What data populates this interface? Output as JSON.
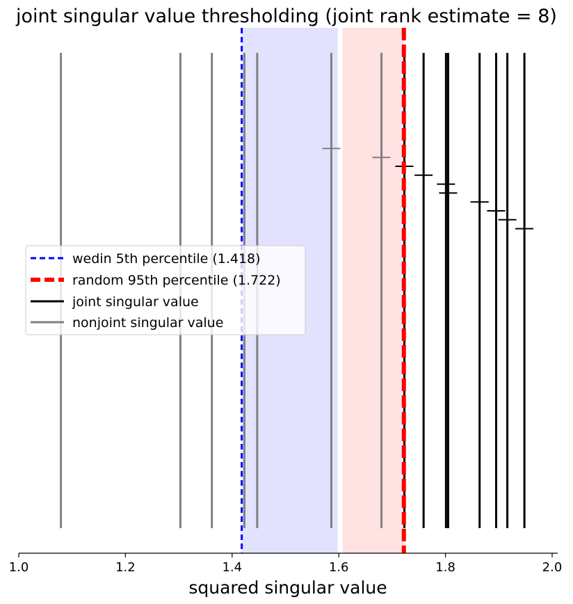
{
  "chart_data": {
    "type": "line",
    "title": "joint singular value thresholding (joint rank estimate = 8)",
    "xlabel": "squared singular value",
    "xlim": [
      1.0,
      2.0
    ],
    "xticks": [
      "1.0",
      "1.2",
      "1.4",
      "1.6",
      "1.8",
      "2.0"
    ],
    "grid": false,
    "legend_position": "center-left",
    "legend": [
      {
        "label": "wedin 5th percentile (1.418)",
        "style": "dashed",
        "color": "#0000ff"
      },
      {
        "label": "random 95th percentile (1.722)",
        "style": "dashed-thick",
        "color": "#ff0000"
      },
      {
        "label": "joint singular value",
        "style": "solid",
        "color": "#000000"
      },
      {
        "label": "nonjoint singular value",
        "style": "solid",
        "color": "#808080"
      }
    ],
    "regions": [
      {
        "name": "wedin region",
        "x_start": 1.418,
        "x_end": 1.598,
        "color": "#e2e2ff"
      },
      {
        "name": "random region",
        "x_start": 1.607,
        "x_end": 1.722,
        "color": "#ffe2e2"
      }
    ],
    "thresholds": [
      {
        "name": "wedin 5th percentile",
        "x": 1.418,
        "color": "#0000ff"
      },
      {
        "name": "random 95th percentile",
        "x": 1.722,
        "color": "#ff0000"
      }
    ],
    "series": [
      {
        "name": "nonjoint singular value",
        "color": "#808080",
        "x": [
          1.079,
          1.303,
          1.362,
          1.423,
          1.447,
          1.586,
          1.68
        ]
      },
      {
        "name": "joint singular value",
        "color": "#000000",
        "x": [
          1.723,
          1.759,
          1.801,
          1.805,
          1.864,
          1.895,
          1.916,
          1.948
        ]
      }
    ],
    "markers": [
      {
        "x": 1.586,
        "level": 12,
        "color": "#808080"
      },
      {
        "x": 1.68,
        "level": 11,
        "color": "#808080"
      },
      {
        "x": 1.723,
        "level": 10,
        "color": "#000000"
      },
      {
        "x": 1.759,
        "level": 9,
        "color": "#000000"
      },
      {
        "x": 1.801,
        "level": 8,
        "color": "#000000"
      },
      {
        "x": 1.805,
        "level": 7,
        "color": "#000000"
      },
      {
        "x": 1.864,
        "level": 6,
        "color": "#000000"
      },
      {
        "x": 1.895,
        "level": 5,
        "color": "#000000"
      },
      {
        "x": 1.916,
        "level": 4,
        "color": "#000000"
      },
      {
        "x": 1.948,
        "level": 3,
        "color": "#000000"
      }
    ]
  }
}
